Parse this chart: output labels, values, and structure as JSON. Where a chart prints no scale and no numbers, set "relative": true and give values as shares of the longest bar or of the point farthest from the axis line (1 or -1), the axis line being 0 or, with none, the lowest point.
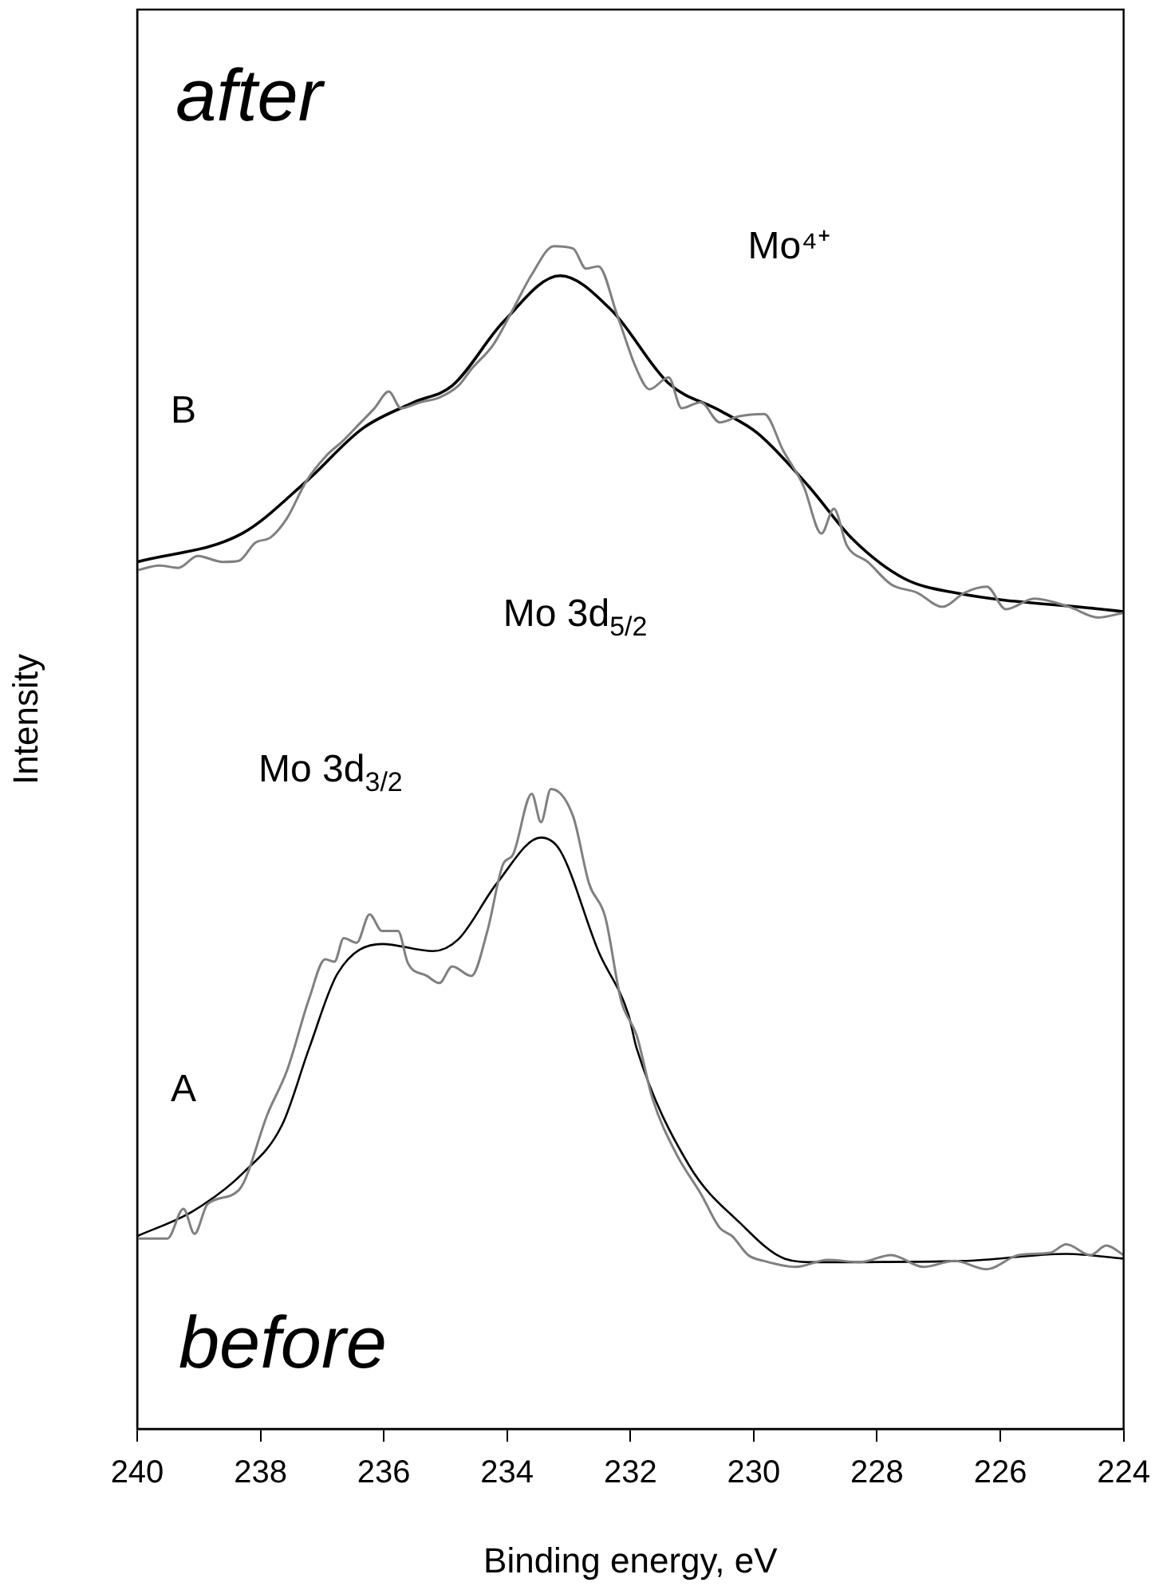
{
  "chart_data": {
    "type": "line",
    "xlabel": "Binding energy, eV",
    "ylabel": "Intensity",
    "relative": true,
    "xlim": [
      240,
      224
    ],
    "xticks": [
      240,
      238,
      236,
      234,
      232,
      230,
      228,
      226,
      224
    ],
    "grid": false,
    "legend": false,
    "marker": "none",
    "line_style": "solid",
    "annotations": [
      "after",
      "before",
      "B",
      "A",
      "Mo⁴⁺",
      "Mo 3d$_{5/2}$",
      "Mo 3d$_{3/2}$"
    ],
    "series": [
      {
        "color": "#808080",
        "x": [
          240,
          239.64,
          239.33,
          239.02,
          238.61,
          238.35,
          238.09,
          237.83,
          237.57,
          237.26,
          236.93,
          236.67,
          236.41,
          236.15,
          235.92,
          235.72,
          235.41,
          235.1,
          234.79,
          234.58,
          234.22,
          233.91,
          233.6,
          233.24,
          232.93,
          232.72,
          232.52,
          232.21,
          231.9,
          231.69,
          231.38,
          231.17,
          230.86,
          230.55,
          230.25,
          229.83,
          229.52,
          229.19,
          228.9,
          228.7,
          228.49,
          228.15,
          227.77,
          227.35,
          226.94,
          226.58,
          226.22,
          225.91,
          225.45,
          224.88,
          224.41,
          224
        ],
        "values": [
          0.726,
          0.73,
          0.728,
          0.738,
          0.733,
          0.734,
          0.749,
          0.754,
          0.77,
          0.801,
          0.823,
          0.835,
          0.849,
          0.863,
          0.877,
          0.863,
          0.868,
          0.872,
          0.882,
          0.896,
          0.917,
          0.946,
          0.976,
          1.0,
          0.998,
          0.981,
          0.983,
          0.941,
          0.896,
          0.879,
          0.889,
          0.863,
          0.868,
          0.851,
          0.856,
          0.858,
          0.827,
          0.797,
          0.757,
          0.778,
          0.747,
          0.733,
          0.714,
          0.707,
          0.695,
          0.707,
          0.712,
          0.693,
          0.702,
          0.695,
          0.686,
          0.69
        ]
      },
      {
        "color": "#000000",
        "x": [
          240,
          238.3,
          237.26,
          236.34,
          235.51,
          234.89,
          234.06,
          233.14,
          232.31,
          231.38,
          230.55,
          229.94,
          229.11,
          228.39,
          227.56,
          226.74,
          224.36,
          224
        ],
        "values": [
          0.733,
          0.757,
          0.801,
          0.846,
          0.868,
          0.882,
          0.936,
          0.975,
          0.946,
          0.884,
          0.861,
          0.842,
          0.797,
          0.752,
          0.719,
          0.707,
          0.693,
          0.691
        ]
      },
      {
        "color": "#808080",
        "x": [
          240,
          239.51,
          239.25,
          239.07,
          238.86,
          238.35,
          237.88,
          237.57,
          237.21,
          236.95,
          236.8,
          236.65,
          236.44,
          236.23,
          236.03,
          235.77,
          235.61,
          235.3,
          235.1,
          234.89,
          234.58,
          234.32,
          234.06,
          233.91,
          233.6,
          233.45,
          233.29,
          232.93,
          232.67,
          232.41,
          232.15,
          231.9,
          231.64,
          231.25,
          230.86,
          230.55,
          230.35,
          230.09,
          229.83,
          229.32,
          228.8,
          228.28,
          227.77,
          227.25,
          226.74,
          226.22,
          225.7,
          225.19,
          224.93,
          224.54,
          224.28,
          224
        ],
        "values": [
          0.161,
          0.161,
          0.186,
          0.165,
          0.19,
          0.202,
          0.267,
          0.303,
          0.364,
          0.397,
          0.395,
          0.415,
          0.411,
          0.435,
          0.421,
          0.421,
          0.394,
          0.383,
          0.377,
          0.391,
          0.383,
          0.421,
          0.478,
          0.485,
          0.537,
          0.513,
          0.541,
          0.518,
          0.461,
          0.433,
          0.362,
          0.333,
          0.279,
          0.232,
          0.199,
          0.17,
          0.163,
          0.147,
          0.142,
          0.137,
          0.143,
          0.141,
          0.147,
          0.137,
          0.142,
          0.135,
          0.147,
          0.149,
          0.156,
          0.147,
          0.155,
          0.147
        ]
      },
      {
        "color": "#000000",
        "x": [
          240,
          239.1,
          238.27,
          237.65,
          237.21,
          236.75,
          236.03,
          235.2,
          234.79,
          234.17,
          233.45,
          233.14,
          232.52,
          232.03,
          231.9,
          231.05,
          230.22,
          229.5,
          229.01,
          226.61,
          224.93,
          224
        ],
        "values": [
          0.163,
          0.184,
          0.217,
          0.257,
          0.322,
          0.385,
          0.41,
          0.404,
          0.414,
          0.461,
          0.5,
          0.489,
          0.404,
          0.35,
          0.322,
          0.223,
          0.174,
          0.144,
          0.141,
          0.142,
          0.148,
          0.144
        ]
      }
    ]
  }
}
